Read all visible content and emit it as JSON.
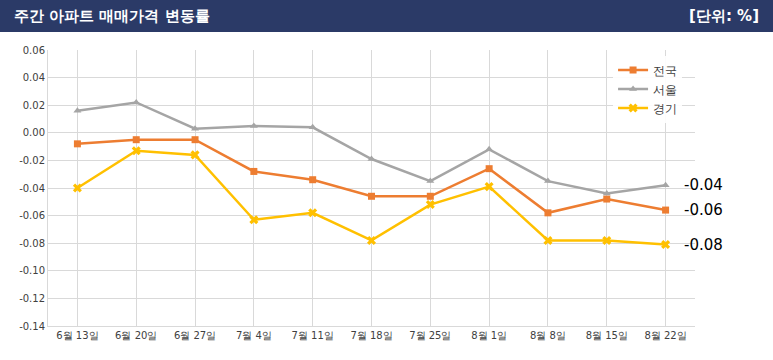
{
  "chart_data": {
    "type": "line",
    "title": "주간 아파트 매매가격 변동률",
    "subtitle": "[단위: %]",
    "categories": [
      "6월 13일",
      "6월 20일",
      "6월 27일",
      "7월 4일",
      "7월 11일",
      "7월 18일",
      "7월 25일",
      "8월 1일",
      "8월 8일",
      "8월 15일",
      "8월 22일"
    ],
    "series": [
      {
        "name": "전국",
        "color": "#ed7d31",
        "marker": "square",
        "line_style": "solid",
        "values": [
          -0.008,
          -0.005,
          -0.005,
          -0.028,
          -0.034,
          -0.046,
          -0.046,
          -0.026,
          -0.058,
          -0.048,
          -0.056
        ]
      },
      {
        "name": "서울",
        "color": "#a5a5a5",
        "marker": "triangle-up",
        "line_style": "solid",
        "values": [
          0.016,
          0.022,
          0.003,
          0.005,
          0.004,
          -0.019,
          -0.035,
          -0.012,
          -0.035,
          -0.044,
          -0.038
        ]
      },
      {
        "name": "경기",
        "color": "#ffc000",
        "marker": "x",
        "line_style": "solid",
        "values": [
          -0.04,
          -0.013,
          -0.016,
          -0.063,
          -0.058,
          -0.078,
          -0.052,
          -0.039,
          -0.078,
          -0.078,
          -0.081
        ]
      }
    ],
    "annotations": [
      {
        "text": "-0.04",
        "series": "서울"
      },
      {
        "text": "-0.06",
        "series": "전국"
      },
      {
        "text": "-0.08",
        "series": "경기"
      }
    ],
    "ylim": [
      -0.14,
      0.06
    ],
    "yticks": [
      0.06,
      0.04,
      0.02,
      {
        "value": 0,
        "label": "0.00"
      },
      -0.02,
      -0.04,
      -0.06,
      -0.08,
      {
        "value": -0.1,
        "label": "-0.10"
      },
      -0.12,
      -0.14
    ],
    "grid": true,
    "legend": "upper right"
  }
}
